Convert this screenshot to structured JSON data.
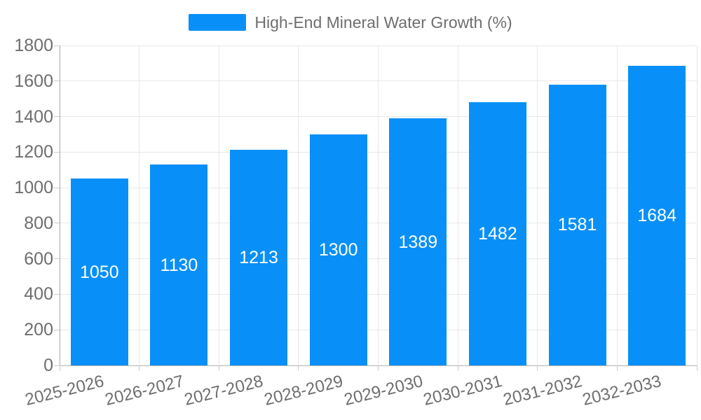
{
  "legend": {
    "label": "High-End Mineral Water Growth (%)"
  },
  "colors": {
    "bar": "#0890F8",
    "axis_text": "#6E6E6E",
    "grid_line": "#E8E8E8",
    "y_axis_line": "#AAAAAA",
    "x_axis_line": "#B3B3B3",
    "tick_line": "#CCCCCC",
    "bar_value_text": "#FFFFFF",
    "background": "#FFFFFF"
  },
  "chart_data": {
    "type": "bar",
    "title": "High-End Mineral Water Growth (%)",
    "categories": [
      "2025-2026",
      "2026-2027",
      "2027-2028",
      "2028-2029",
      "2029-2030",
      "2030-2031",
      "2031-2032",
      "2032-2033"
    ],
    "values": [
      1050,
      1130,
      1213,
      1300,
      1389,
      1482,
      1581,
      1684
    ],
    "xlabel": "",
    "ylabel": "",
    "ylim": [
      0,
      1800
    ],
    "y_tick_step": 200,
    "y_tick_labels": [
      "0",
      "200",
      "400",
      "600",
      "800",
      "1000",
      "1200",
      "1400",
      "1600",
      "1800"
    ],
    "grid": true,
    "legend_position": "top-center",
    "bar_label_position": "inside-center",
    "x_label_rotation_deg": -14
  }
}
